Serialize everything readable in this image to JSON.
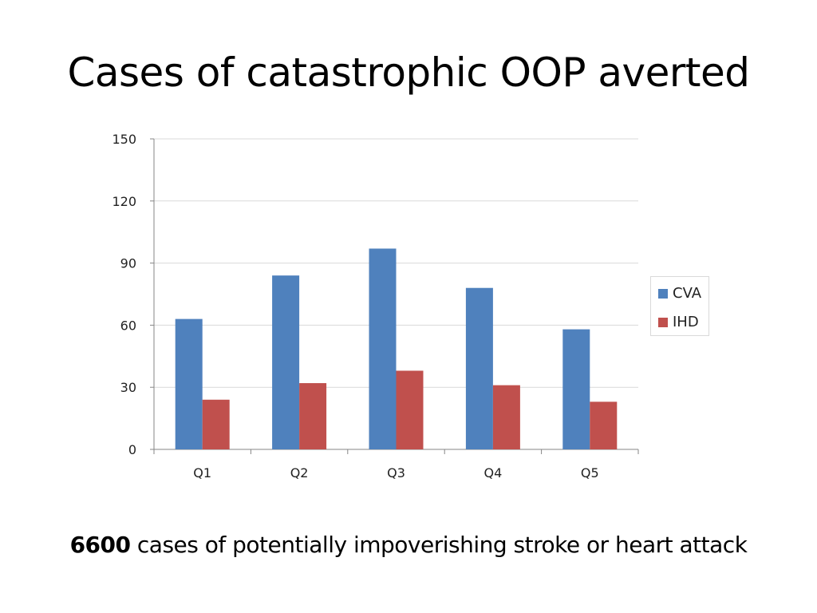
{
  "slide": {
    "title": "Cases of catastrophic OOP averted",
    "footer_bold": "6600",
    "footer_text": " cases of potentially impoverishing stroke or heart attack"
  },
  "chart_data": {
    "type": "bar",
    "title": "",
    "xlabel": "",
    "ylabel": "",
    "categories": [
      "Q1",
      "Q2",
      "Q3",
      "Q4",
      "Q5"
    ],
    "series": [
      {
        "name": "CVA",
        "color": "#4f81bd",
        "values": [
          63,
          84,
          97,
          78,
          58
        ]
      },
      {
        "name": "IHD",
        "color": "#c0504d",
        "values": [
          24,
          32,
          38,
          31,
          23
        ]
      }
    ],
    "ylim": [
      0,
      150
    ],
    "yticks": [
      0,
      30,
      60,
      90,
      120,
      150
    ],
    "grid": true,
    "legend_position": "right"
  }
}
